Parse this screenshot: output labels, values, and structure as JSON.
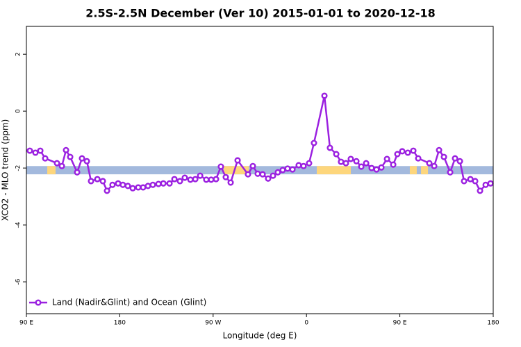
{
  "chart_data": {
    "type": "line",
    "title": "2.5S-2.5N December (Ver 10)   2015-01-01 to 2020-12-18",
    "x_label": "Longitude (deg E)",
    "y_label": "XCO2 - MLO trend (ppm)",
    "xlim": [
      90,
      540
    ],
    "xticks": [
      {
        "value": 90,
        "label": "90 E"
      },
      {
        "value": 180,
        "label": "180"
      },
      {
        "value": 270,
        "label": "90 W"
      },
      {
        "value": 360,
        "label": "0"
      },
      {
        "value": 450,
        "label": "90 E"
      },
      {
        "value": 540,
        "label": "180"
      }
    ],
    "ylim": [
      -7.12,
      2.98
    ],
    "yticks": [
      -6,
      -4,
      -2,
      0,
      2
    ],
    "legend": "bottom-left",
    "surface_band": {
      "ylim": [
        -2.22,
        -1.93
      ],
      "ocean_color": "#a3b9dd",
      "land_color": "#fdd67c",
      "land_segments": [
        [
          110.1,
          118.1
        ],
        [
          280.2,
          304.3
        ],
        [
          369.9,
          402.7
        ],
        [
          459.6,
          466.3
        ],
        [
          470.4,
          477.1
        ]
      ]
    },
    "series": [
      {
        "name": "Land (Nadir&Glint) and Ocean (Glint)",
        "color": "#9b21e0",
        "x": [
          93.3,
          98.7,
          103.4,
          108.1,
          119.5,
          124.2,
          128.2,
          132.2,
          138.9,
          143.6,
          148.3,
          152.3,
          158.4,
          163.7,
          167.7,
          173.0,
          178.4,
          183.0,
          187.8,
          192.5,
          197.8,
          202.5,
          207.2,
          211.9,
          217.3,
          222.0,
          228.0,
          232.7,
          238.0,
          242.7,
          248.1,
          252.8,
          257.5,
          263.4,
          268.1,
          272.8,
          277.5,
          282.2,
          286.9,
          293.6,
          303.6,
          308.3,
          313.0,
          317.7,
          323.0,
          327.7,
          332.4,
          337.1,
          341.8,
          346.5,
          352.5,
          357.2,
          362.5,
          367.2,
          377.3,
          382.6,
          388.7,
          393.3,
          398.0,
          402.7,
          408.1,
          412.8,
          417.5,
          422.8,
          427.5,
          432.2,
          437.6,
          443.6,
          447.6,
          452.3,
          457.7,
          463.0,
          467.7,
          478.4,
          483.1,
          487.8,
          492.5,
          498.5,
          503.2,
          507.9,
          511.9,
          518.0,
          522.6,
          527.3,
          532.7,
          537.4
        ],
        "values": [
          -1.39,
          -1.46,
          -1.39,
          -1.66,
          -1.83,
          -1.93,
          -1.37,
          -1.61,
          -2.15,
          -1.66,
          -1.76,
          -2.46,
          -2.39,
          -2.46,
          -2.8,
          -2.59,
          -2.54,
          -2.59,
          -2.63,
          -2.71,
          -2.68,
          -2.68,
          -2.63,
          -2.59,
          -2.56,
          -2.54,
          -2.54,
          -2.39,
          -2.46,
          -2.34,
          -2.41,
          -2.39,
          -2.27,
          -2.41,
          -2.41,
          -2.39,
          -1.95,
          -2.32,
          -2.51,
          -1.73,
          -2.22,
          -1.93,
          -2.2,
          -2.22,
          -2.37,
          -2.27,
          -2.15,
          -2.07,
          -2.02,
          -2.05,
          -1.9,
          -1.93,
          -1.83,
          -1.12,
          0.54,
          -1.29,
          -1.51,
          -1.78,
          -1.83,
          -1.68,
          -1.76,
          -1.95,
          -1.83,
          -2.0,
          -2.05,
          -1.98,
          -1.68,
          -1.88,
          -1.51,
          -1.41,
          -1.46,
          -1.39,
          -1.66,
          -1.83,
          -1.93,
          -1.37,
          -1.61,
          -2.15,
          -1.66,
          -1.76,
          -2.46,
          -2.39,
          -2.46,
          -2.8,
          -2.59,
          -2.54
        ]
      }
    ]
  }
}
